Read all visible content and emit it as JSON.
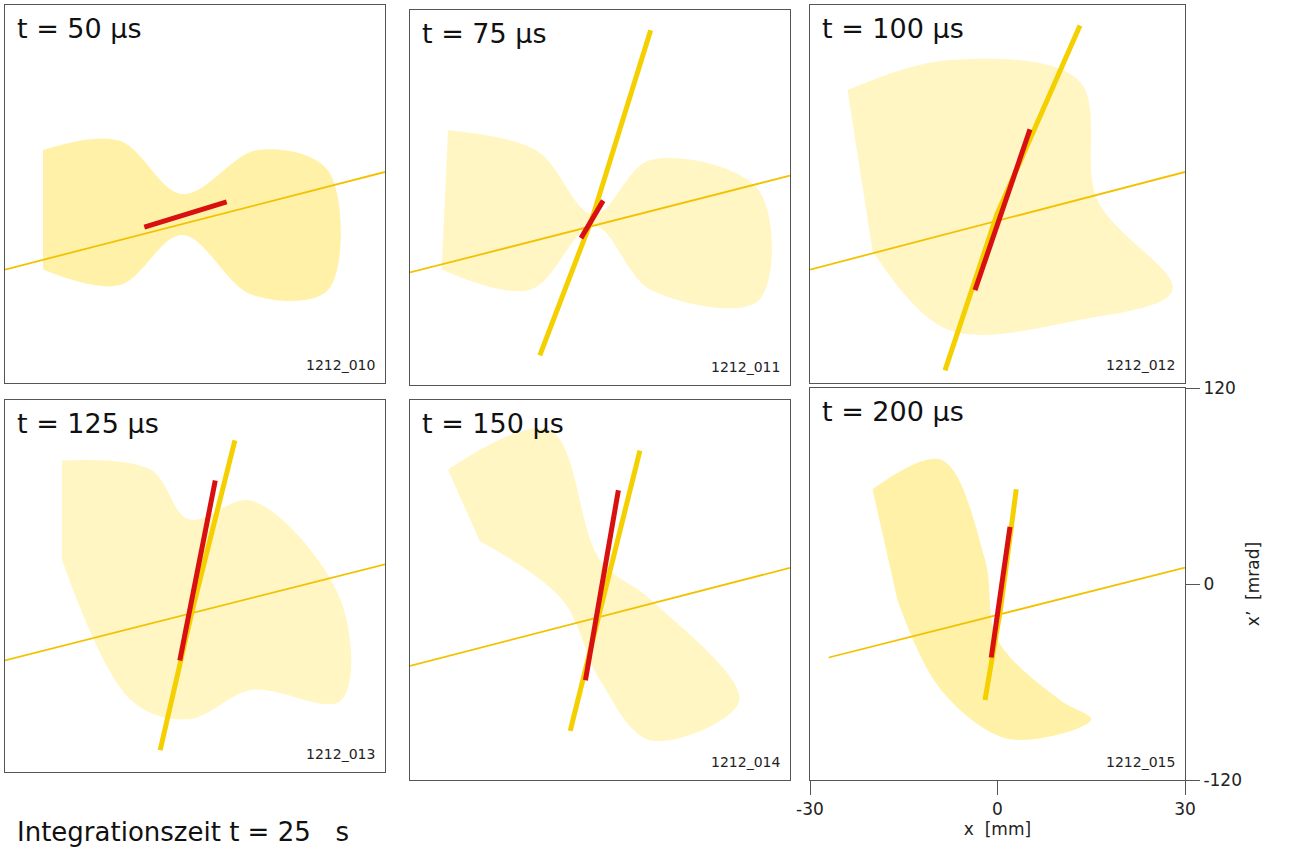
{
  "caption": "Integrationszeit t = 25   s",
  "chart_data": [
    {
      "type": "line",
      "title": "t = 50 µs",
      "annotation": "1212_010",
      "xlim": [
        -30,
        30
      ],
      "ylim": [
        -120,
        120
      ],
      "tick_labels": false,
      "grid": false,
      "series": [
        {
          "type": "area",
          "color": "#fff2a8",
          "x": [
            -24,
            -12,
            -2,
            10,
            21,
            21,
            9,
            -2,
            -12,
            -24
          ],
          "values": [
            28,
            34,
            0,
            28,
            15,
            -61,
            -64,
            -26,
            -58,
            -48
          ]
        },
        {
          "type": "line",
          "line_style": "thin",
          "color": "#f2c200",
          "x": [
            -30,
            30
          ],
          "values": [
            -48,
            14
          ]
        },
        {
          "type": "line",
          "line_style": "bold",
          "color": "#d81010",
          "x": [
            -8,
            5
          ],
          "values": [
            -21,
            -5
          ]
        }
      ]
    },
    {
      "type": "line",
      "title": "t = 75 µs",
      "annotation": "1212_011",
      "xlim": [
        -30,
        30
      ],
      "ylim": [
        -120,
        120
      ],
      "tick_labels": false,
      "grid": false,
      "series": [
        {
          "type": "area",
          "color": "#fff6c4",
          "x": [
            -24,
            -10,
            -1,
            8,
            25,
            25,
            8,
            -1,
            -11,
            -25
          ],
          "values": [
            43,
            30,
            -11,
            24,
            5,
            -66,
            -59,
            -18,
            -59,
            -46
          ]
        },
        {
          "type": "line",
          "line_style": "thin",
          "color": "#f2c200",
          "x": [
            -30,
            30
          ],
          "values": [
            -48,
            14
          ]
        },
        {
          "type": "line",
          "line_style": "bold",
          "color": "#f5d000",
          "x": [
            -9.5,
            -1.3,
            8
          ],
          "values": [
            -101,
            -14,
            107
          ]
        },
        {
          "type": "line",
          "line_style": "bold",
          "color": "#d81010",
          "x": [
            -3,
            0.5
          ],
          "values": [
            -26,
            -2
          ]
        }
      ]
    },
    {
      "type": "line",
      "title": "t = 100 µs",
      "annotation": "1212_012",
      "xlim": [
        -30,
        30
      ],
      "ylim": [
        -120,
        120
      ],
      "tick_labels": false,
      "grid": false,
      "series": [
        {
          "type": "area",
          "color": "#fff6c4",
          "x": [
            -24,
            -8,
            13,
            16,
            28,
            13,
            -8,
            -20
          ],
          "values": [
            66,
            85,
            72,
            -4,
            -61,
            -80,
            -86,
            -36
          ]
        },
        {
          "type": "line",
          "line_style": "thin",
          "color": "#f2c200",
          "x": [
            -30,
            30
          ],
          "values": [
            -48,
            14
          ]
        },
        {
          "type": "line",
          "line_style": "bold",
          "color": "#f5d000",
          "x": [
            -8.4,
            -0.1,
            13.2
          ],
          "values": [
            -112,
            -13,
            107
          ]
        },
        {
          "type": "line",
          "line_style": "bold",
          "color": "#d81010",
          "x": [
            -3.6,
            5.2
          ],
          "values": [
            -61,
            41
          ]
        }
      ]
    },
    {
      "type": "line",
      "title": "t = 125 µs",
      "annotation": "1212_013",
      "xlim": [
        -30,
        30
      ],
      "ylim": [
        -120,
        120
      ],
      "tick_labels": false,
      "grid": false,
      "series": [
        {
          "type": "area",
          "color": "#fff6c4",
          "x": [
            -21,
            -7,
            -1,
            9,
            23,
            23,
            9,
            -1,
            -10,
            -21
          ],
          "values": [
            81,
            75,
            43,
            55,
            -9,
            -74,
            -67,
            -86,
            -74,
            17
          ]
        },
        {
          "type": "line",
          "line_style": "thin",
          "color": "#f2c200",
          "x": [
            -30,
            30
          ],
          "values": [
            -48,
            14
          ]
        },
        {
          "type": "line",
          "line_style": "bold",
          "color": "#f5d000",
          "x": [
            -5.5,
            -0.5,
            6.3
          ],
          "values": [
            -106,
            -17,
            94
          ]
        },
        {
          "type": "line",
          "line_style": "bold",
          "color": "#d81010",
          "x": [
            -2.4,
            3.2
          ],
          "values": [
            -48,
            68
          ]
        }
      ]
    },
    {
      "type": "line",
      "title": "t = 150 µs",
      "annotation": "1212_014",
      "xlim": [
        -30,
        30
      ],
      "ylim": [
        -120,
        120
      ],
      "tick_labels": false,
      "grid": false,
      "series": [
        {
          "type": "area",
          "color": "#fff6c4",
          "x": [
            -24,
            -8,
            0,
            8,
            22,
            8,
            0,
            -6,
            -19
          ],
          "values": [
            76,
            101,
            19,
            -6,
            -70,
            -95,
            -57,
            -6,
            31
          ]
        },
        {
          "type": "line",
          "line_style": "thin",
          "color": "#f2c200",
          "x": [
            -30,
            30
          ],
          "values": [
            -48,
            14
          ]
        },
        {
          "type": "line",
          "line_style": "bold",
          "color": "#f5d000",
          "x": [
            -4.7,
            -0.3,
            6.3
          ],
          "values": [
            -89,
            -18,
            88
          ]
        },
        {
          "type": "line",
          "line_style": "bold",
          "color": "#d81010",
          "x": [
            -2.3,
            2.9
          ],
          "values": [
            -57,
            63
          ]
        }
      ]
    },
    {
      "type": "line",
      "title": "t = 200 µs",
      "annotation": "1212_015",
      "xlim": [
        -30,
        30
      ],
      "ylim": [
        -120,
        120
      ],
      "tick_labels": true,
      "grid": false,
      "xticks": [
        -30,
        0,
        30
      ],
      "yticks": [
        -120,
        0,
        120
      ],
      "x_label": "x  [mm]",
      "y_label": "x’  [mrad]",
      "series": [
        {
          "type": "area",
          "color": "#fff2a8",
          "x": [
            -20,
            -9,
            -2,
            0,
            10,
            15,
            2,
            -9,
            -16
          ],
          "values": [
            58,
            76,
            15,
            -34,
            -71,
            -83,
            -95,
            -65,
            -10
          ]
        },
        {
          "type": "line",
          "line_style": "thin",
          "color": "#f2c200",
          "x": [
            -27,
            30
          ],
          "values": [
            -45,
            10
          ]
        },
        {
          "type": "line",
          "line_style": "bold",
          "color": "#f5d000",
          "x": [
            -2,
            0.5,
            3
          ],
          "values": [
            -71,
            -15,
            58
          ]
        },
        {
          "type": "line",
          "line_style": "bold",
          "color": "#d81010",
          "x": [
            -1,
            2
          ],
          "values": [
            -45,
            35
          ]
        }
      ]
    }
  ]
}
